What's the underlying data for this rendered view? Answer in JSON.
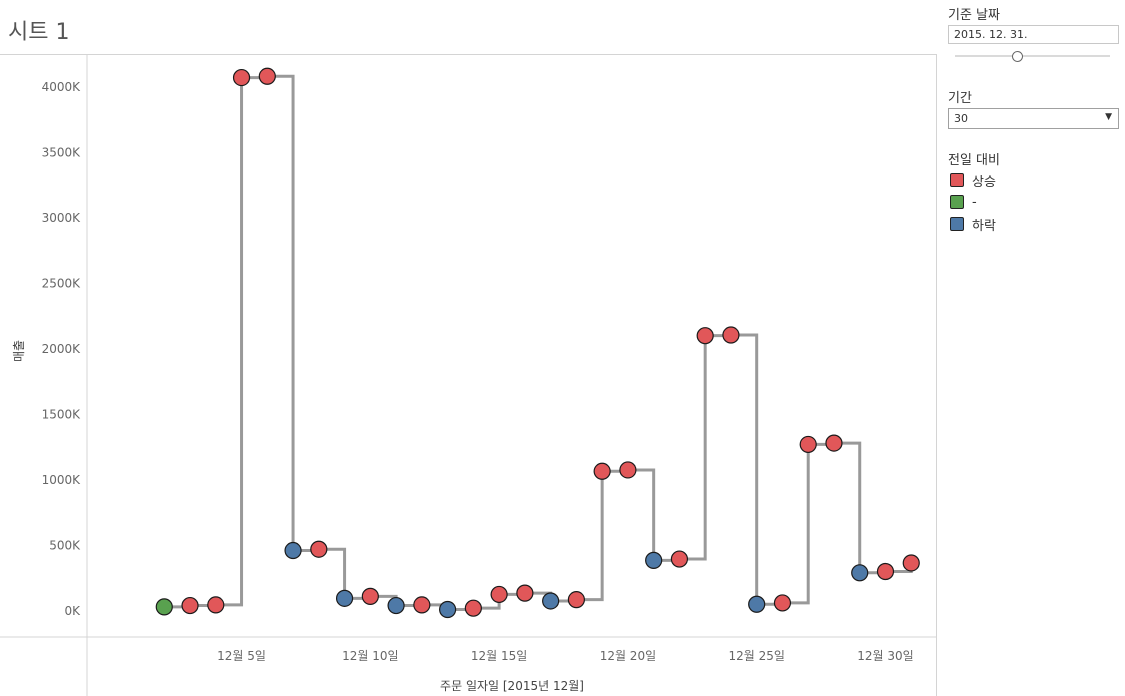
{
  "sheet": {
    "title": "시트 1"
  },
  "controls": {
    "base_date": {
      "label": "기준 날짜",
      "value": "2015. 12. 31."
    },
    "period": {
      "label": "기간",
      "value": "30"
    },
    "legend": {
      "title": "전일 대비",
      "items": [
        {
          "label": "상승",
          "color": "#e15759"
        },
        {
          "label": "-",
          "color": "#59a14f"
        },
        {
          "label": "하락",
          "color": "#4e79a7"
        }
      ]
    }
  },
  "chart_data": {
    "type": "line",
    "line_style": "step",
    "xlabel": "주문 일자일 [2015년 12월]",
    "ylabel": "매출",
    "ylim": [
      -200000,
      4250000
    ],
    "y_ticks": [
      {
        "value": 0,
        "label": "0K"
      },
      {
        "value": 500000,
        "label": "500K"
      },
      {
        "value": 1000000,
        "label": "1000K"
      },
      {
        "value": 1500000,
        "label": "1500K"
      },
      {
        "value": 2000000,
        "label": "2000K"
      },
      {
        "value": 2500000,
        "label": "2500K"
      },
      {
        "value": 3000000,
        "label": "3000K"
      },
      {
        "value": 3500000,
        "label": "3500K"
      },
      {
        "value": 4000000,
        "label": "4000K"
      }
    ],
    "x_ticks": [
      {
        "day": 5,
        "label": "12월 5일"
      },
      {
        "day": 10,
        "label": "12월 10일"
      },
      {
        "day": 15,
        "label": "12월 15일"
      },
      {
        "day": 20,
        "label": "12월 20일"
      },
      {
        "day": 25,
        "label": "12월 25일"
      },
      {
        "day": 30,
        "label": "12월 30일"
      }
    ],
    "xlim": [
      -1,
      32
    ],
    "grid": false,
    "points": [
      {
        "day": 2,
        "value": 30000,
        "change": "-"
      },
      {
        "day": 3,
        "value": 40000,
        "change": "상승"
      },
      {
        "day": 4,
        "value": 45000,
        "change": "상승"
      },
      {
        "day": 5,
        "value": 4070000,
        "change": "상승"
      },
      {
        "day": 6,
        "value": 4080000,
        "change": "상승"
      },
      {
        "day": 7,
        "value": 460000,
        "change": "하락"
      },
      {
        "day": 8,
        "value": 470000,
        "change": "상승"
      },
      {
        "day": 9,
        "value": 95000,
        "change": "하락"
      },
      {
        "day": 10,
        "value": 110000,
        "change": "상승"
      },
      {
        "day": 11,
        "value": 40000,
        "change": "하락"
      },
      {
        "day": 12,
        "value": 45000,
        "change": "상승"
      },
      {
        "day": 13,
        "value": 10000,
        "change": "하락"
      },
      {
        "day": 14,
        "value": 20000,
        "change": "상승"
      },
      {
        "day": 15,
        "value": 125000,
        "change": "상승"
      },
      {
        "day": 16,
        "value": 135000,
        "change": "상승"
      },
      {
        "day": 17,
        "value": 75000,
        "change": "하락"
      },
      {
        "day": 18,
        "value": 85000,
        "change": "상승"
      },
      {
        "day": 19,
        "value": 1065000,
        "change": "상승"
      },
      {
        "day": 20,
        "value": 1075000,
        "change": "상승"
      },
      {
        "day": 21,
        "value": 385000,
        "change": "하락"
      },
      {
        "day": 22,
        "value": 395000,
        "change": "상승"
      },
      {
        "day": 23,
        "value": 2100000,
        "change": "상승"
      },
      {
        "day": 24,
        "value": 2105000,
        "change": "상승"
      },
      {
        "day": 25,
        "value": 50000,
        "change": "하락"
      },
      {
        "day": 26,
        "value": 60000,
        "change": "상승"
      },
      {
        "day": 27,
        "value": 1270000,
        "change": "상승"
      },
      {
        "day": 28,
        "value": 1280000,
        "change": "상승"
      },
      {
        "day": 29,
        "value": 290000,
        "change": "하락"
      },
      {
        "day": 30,
        "value": 300000,
        "change": "상승"
      },
      {
        "day": 31,
        "value": 365000,
        "change": "상승"
      }
    ],
    "line_color": "#999999",
    "change_colors": {
      "상승": "#e15759",
      "-": "#59a14f",
      "하락": "#4e79a7"
    }
  }
}
